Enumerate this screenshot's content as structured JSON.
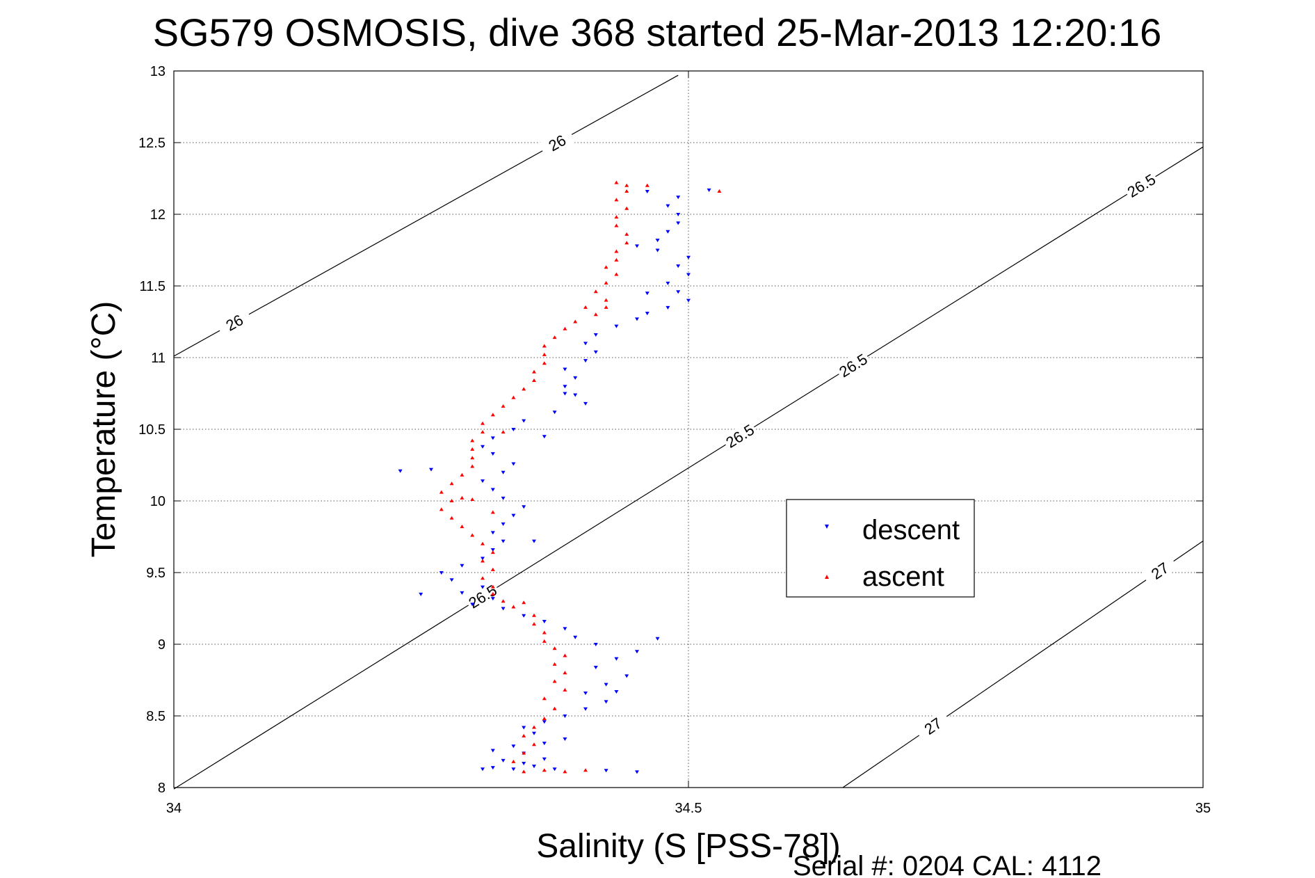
{
  "chart_data": {
    "type": "scatter",
    "title": "SG579 OSMOSIS, dive 368 started 25-Mar-2013 12:20:16",
    "xlabel": "Salinity (S [PSS-78])",
    "ylabel": "Temperature (°C)",
    "xlim": [
      34,
      35
    ],
    "ylim": [
      8,
      13
    ],
    "xticks": [
      "34",
      "34.5",
      "35"
    ],
    "yticks": [
      "8",
      "8.5",
      "9",
      "9.5",
      "10",
      "10.5",
      "11",
      "11.5",
      "12",
      "12.5",
      "13"
    ],
    "grid": true,
    "legend_position": "center-right",
    "footer": "Serial #: 0204  CAL: 4112",
    "density_contours": [
      {
        "sigma": 26,
        "points": [
          [
            34.0,
            11.01
          ],
          [
            34.49,
            12.97
          ]
        ],
        "labels": [
          "26",
          "26"
        ]
      },
      {
        "sigma": 26.5,
        "points": [
          [
            34.0,
            7.99
          ],
          [
            35.0,
            12.47
          ]
        ],
        "labels": [
          "26.5",
          "26.5",
          "26.5",
          "26.5"
        ]
      },
      {
        "sigma": 27,
        "points": [
          [
            34.65,
            8.0
          ],
          [
            35.0,
            9.72
          ]
        ],
        "labels": [
          "27",
          "27"
        ]
      }
    ],
    "series": [
      {
        "name": "descent",
        "color": "#0000ff",
        "marker": "triangle-down",
        "points": [
          [
            34.3,
            8.13
          ],
          [
            34.31,
            8.14
          ],
          [
            34.33,
            8.13
          ],
          [
            34.35,
            8.15
          ],
          [
            34.37,
            8.13
          ],
          [
            34.34,
            8.17
          ],
          [
            34.32,
            8.19
          ],
          [
            34.36,
            8.2
          ],
          [
            34.34,
            8.24
          ],
          [
            34.31,
            8.26
          ],
          [
            34.33,
            8.29
          ],
          [
            34.36,
            8.31
          ],
          [
            34.38,
            8.34
          ],
          [
            34.35,
            8.38
          ],
          [
            34.34,
            8.42
          ],
          [
            34.36,
            8.46
          ],
          [
            34.38,
            8.5
          ],
          [
            34.4,
            8.55
          ],
          [
            34.42,
            8.6
          ],
          [
            34.4,
            8.66
          ],
          [
            34.42,
            8.72
          ],
          [
            34.44,
            8.78
          ],
          [
            34.41,
            8.84
          ],
          [
            34.43,
            8.9
          ],
          [
            34.45,
            8.95
          ],
          [
            34.41,
            9.0
          ],
          [
            34.39,
            9.05
          ],
          [
            34.38,
            9.11
          ],
          [
            34.36,
            9.16
          ],
          [
            34.34,
            9.2
          ],
          [
            34.32,
            9.25
          ],
          [
            34.29,
            9.28
          ],
          [
            34.31,
            9.32
          ],
          [
            34.28,
            9.36
          ],
          [
            34.3,
            9.4
          ],
          [
            34.27,
            9.45
          ],
          [
            34.26,
            9.5
          ],
          [
            34.28,
            9.55
          ],
          [
            34.3,
            9.6
          ],
          [
            34.31,
            9.66
          ],
          [
            34.32,
            9.72
          ],
          [
            34.31,
            9.78
          ],
          [
            34.32,
            9.84
          ],
          [
            34.33,
            9.9
          ],
          [
            34.34,
            9.96
          ],
          [
            34.32,
            10.02
          ],
          [
            34.31,
            10.08
          ],
          [
            34.3,
            10.14
          ],
          [
            34.32,
            10.2
          ],
          [
            34.33,
            10.26
          ],
          [
            34.31,
            10.33
          ],
          [
            34.3,
            10.38
          ],
          [
            34.31,
            10.44
          ],
          [
            34.33,
            10.5
          ],
          [
            34.34,
            10.56
          ],
          [
            34.37,
            10.62
          ],
          [
            34.4,
            10.68
          ],
          [
            34.39,
            10.74
          ],
          [
            34.38,
            10.8
          ],
          [
            34.39,
            10.86
          ],
          [
            34.38,
            10.92
          ],
          [
            34.4,
            10.98
          ],
          [
            34.41,
            11.04
          ],
          [
            34.4,
            11.1
          ],
          [
            34.41,
            11.16
          ],
          [
            34.43,
            11.22
          ],
          [
            34.45,
            11.27
          ],
          [
            34.46,
            11.31
          ],
          [
            34.48,
            11.35
          ],
          [
            34.5,
            11.4
          ],
          [
            34.49,
            11.46
          ],
          [
            34.48,
            11.52
          ],
          [
            34.5,
            11.58
          ],
          [
            34.49,
            11.64
          ],
          [
            34.5,
            11.7
          ],
          [
            34.47,
            11.75
          ],
          [
            34.45,
            11.78
          ],
          [
            34.47,
            11.82
          ],
          [
            34.48,
            11.88
          ],
          [
            34.49,
            11.94
          ],
          [
            34.49,
            12.0
          ],
          [
            34.48,
            12.06
          ],
          [
            34.49,
            12.12
          ],
          [
            34.46,
            12.16
          ],
          [
            34.22,
            10.21
          ],
          [
            34.25,
            10.22
          ],
          [
            34.24,
            9.35
          ],
          [
            34.47,
            9.04
          ],
          [
            34.43,
            8.67
          ],
          [
            34.45,
            8.11
          ],
          [
            34.42,
            8.12
          ],
          [
            34.52,
            12.17
          ],
          [
            34.46,
            11.45
          ],
          [
            34.38,
            10.75
          ],
          [
            34.36,
            10.45
          ],
          [
            34.35,
            9.72
          ]
        ]
      },
      {
        "name": "ascent",
        "color": "#ff0000",
        "marker": "triangle-up",
        "points": [
          [
            34.34,
            8.11
          ],
          [
            34.36,
            8.12
          ],
          [
            34.38,
            8.11
          ],
          [
            34.4,
            8.12
          ],
          [
            34.33,
            8.18
          ],
          [
            34.34,
            8.24
          ],
          [
            34.35,
            8.3
          ],
          [
            34.34,
            8.36
          ],
          [
            34.35,
            8.42
          ],
          [
            34.36,
            8.48
          ],
          [
            34.37,
            8.55
          ],
          [
            34.36,
            8.62
          ],
          [
            34.38,
            8.68
          ],
          [
            34.37,
            8.74
          ],
          [
            34.38,
            8.8
          ],
          [
            34.37,
            8.86
          ],
          [
            34.38,
            8.92
          ],
          [
            34.37,
            8.97
          ],
          [
            34.36,
            9.02
          ],
          [
            34.36,
            9.08
          ],
          [
            34.35,
            9.14
          ],
          [
            34.35,
            9.2
          ],
          [
            34.33,
            9.26
          ],
          [
            34.32,
            9.3
          ],
          [
            34.34,
            9.29
          ],
          [
            34.31,
            9.35
          ],
          [
            34.31,
            9.4
          ],
          [
            34.3,
            9.46
          ],
          [
            34.31,
            9.52
          ],
          [
            34.3,
            9.58
          ],
          [
            34.31,
            9.64
          ],
          [
            34.3,
            9.7
          ],
          [
            34.29,
            9.76
          ],
          [
            34.28,
            9.82
          ],
          [
            34.27,
            9.88
          ],
          [
            34.26,
            9.94
          ],
          [
            34.27,
            10.0
          ],
          [
            34.28,
            10.02
          ],
          [
            34.26,
            10.06
          ],
          [
            34.27,
            10.12
          ],
          [
            34.28,
            10.18
          ],
          [
            34.29,
            10.24
          ],
          [
            34.29,
            10.3
          ],
          [
            34.29,
            10.36
          ],
          [
            34.29,
            10.42
          ],
          [
            34.3,
            10.48
          ],
          [
            34.32,
            10.48
          ],
          [
            34.3,
            10.54
          ],
          [
            34.31,
            10.6
          ],
          [
            34.32,
            10.66
          ],
          [
            34.33,
            10.72
          ],
          [
            34.34,
            10.78
          ],
          [
            34.35,
            10.84
          ],
          [
            34.35,
            10.9
          ],
          [
            34.36,
            10.96
          ],
          [
            34.36,
            11.02
          ],
          [
            34.36,
            11.08
          ],
          [
            34.37,
            11.14
          ],
          [
            34.38,
            11.2
          ],
          [
            34.39,
            11.25
          ],
          [
            34.41,
            11.3
          ],
          [
            34.42,
            11.35
          ],
          [
            34.4,
            11.35
          ],
          [
            34.42,
            11.4
          ],
          [
            34.41,
            11.46
          ],
          [
            34.42,
            11.52
          ],
          [
            34.43,
            11.58
          ],
          [
            34.42,
            11.63
          ],
          [
            34.43,
            11.68
          ],
          [
            34.43,
            11.74
          ],
          [
            34.44,
            11.8
          ],
          [
            34.44,
            11.86
          ],
          [
            34.43,
            11.92
          ],
          [
            34.43,
            11.98
          ],
          [
            34.44,
            12.04
          ],
          [
            34.43,
            12.1
          ],
          [
            34.44,
            12.16
          ],
          [
            34.44,
            12.2
          ],
          [
            34.43,
            12.22
          ],
          [
            34.46,
            12.2
          ],
          [
            34.53,
            12.16
          ],
          [
            34.31,
            9.92
          ],
          [
            34.29,
            10.01
          ]
        ]
      }
    ]
  }
}
